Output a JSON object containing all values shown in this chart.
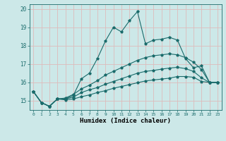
{
  "xlabel": "Humidex (Indice chaleur)",
  "bg_color": "#cce8e8",
  "grid_color": "#ddbbbb",
  "line_color": "#1a6b6b",
  "xlim": [
    -0.5,
    23.5
  ],
  "ylim": [
    14.5,
    20.25
  ],
  "xticks": [
    0,
    1,
    2,
    3,
    4,
    5,
    6,
    7,
    8,
    9,
    10,
    11,
    12,
    13,
    14,
    15,
    16,
    17,
    18,
    19,
    20,
    21,
    22,
    23
  ],
  "yticks": [
    15,
    16,
    17,
    18,
    19,
    20
  ],
  "line1_x": [
    0,
    1,
    2,
    3,
    4,
    5,
    6,
    7,
    8,
    9,
    10,
    11,
    12,
    13,
    14,
    15,
    16,
    17,
    18,
    19,
    20,
    21,
    22,
    23
  ],
  "line1_y": [
    15.5,
    14.9,
    14.7,
    15.1,
    15.1,
    15.3,
    16.2,
    16.5,
    17.3,
    18.25,
    19.0,
    18.75,
    19.35,
    19.85,
    18.1,
    18.3,
    18.35,
    18.45,
    18.3,
    17.3,
    16.8,
    16.9,
    16.0,
    16.0
  ],
  "line2_x": [
    0,
    1,
    2,
    3,
    4,
    5,
    6,
    7,
    8,
    9,
    10,
    11,
    12,
    13,
    14,
    15,
    16,
    17,
    18,
    19,
    20,
    21,
    22,
    23
  ],
  "line2_y": [
    15.5,
    14.9,
    14.7,
    15.1,
    15.15,
    15.35,
    15.65,
    15.85,
    16.1,
    16.4,
    16.6,
    16.8,
    17.0,
    17.2,
    17.35,
    17.45,
    17.5,
    17.55,
    17.5,
    17.35,
    17.1,
    16.7,
    16.0,
    16.0
  ],
  "line3_x": [
    0,
    1,
    2,
    3,
    4,
    5,
    6,
    7,
    8,
    9,
    10,
    11,
    12,
    13,
    14,
    15,
    16,
    17,
    18,
    19,
    20,
    21,
    22,
    23
  ],
  "line3_y": [
    15.5,
    14.9,
    14.7,
    15.1,
    15.1,
    15.2,
    15.45,
    15.6,
    15.72,
    15.9,
    16.05,
    16.2,
    16.35,
    16.5,
    16.6,
    16.65,
    16.72,
    16.78,
    16.82,
    16.75,
    16.6,
    16.25,
    16.0,
    16.0
  ],
  "line4_x": [
    0,
    1,
    2,
    3,
    4,
    5,
    6,
    7,
    8,
    9,
    10,
    11,
    12,
    13,
    14,
    15,
    16,
    17,
    18,
    19,
    20,
    21,
    22,
    23
  ],
  "line4_y": [
    15.5,
    14.9,
    14.7,
    15.1,
    15.05,
    15.1,
    15.22,
    15.32,
    15.45,
    15.55,
    15.68,
    15.78,
    15.88,
    15.98,
    16.08,
    16.13,
    16.18,
    16.23,
    16.32,
    16.32,
    16.28,
    16.05,
    16.0,
    16.0
  ]
}
